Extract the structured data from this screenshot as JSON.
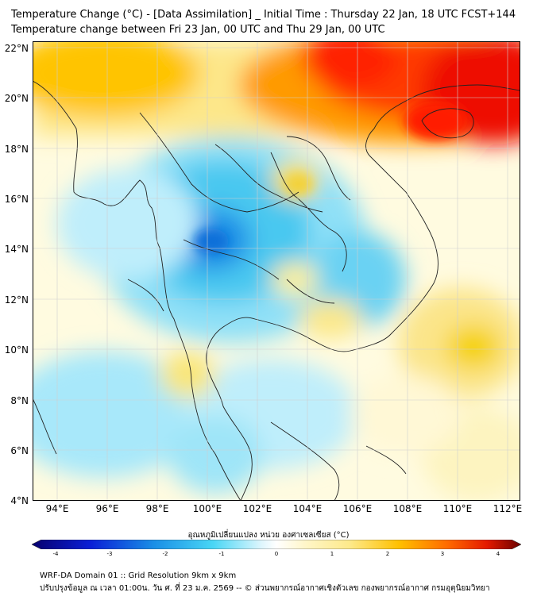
{
  "header": {
    "title_line1": "Temperature Change (°C) - [Data Assimilation] _ Initial Time : Thursday 22 Jan, 18 UTC FCST+144",
    "title_line2": "Temperature change between Fri 23 Jan, 00 UTC and Thu 29 Jan, 00 UTC"
  },
  "map": {
    "lat_labels": [
      "22°N",
      "20°N",
      "18°N",
      "16°N",
      "14°N",
      "12°N",
      "10°N",
      "8°N",
      "6°N",
      "4°N"
    ],
    "lon_labels": [
      "94°E",
      "96°E",
      "98°E",
      "100°E",
      "102°E",
      "104°E",
      "106°E",
      "108°E",
      "110°E",
      "112°E"
    ],
    "lat_range": [
      4,
      22.2
    ],
    "lon_range": [
      93,
      112.5
    ]
  },
  "colorbar": {
    "title": "อุณหภูมิเปลี่ยนแปลง หน่วย องศาเซลเซียส (°C)",
    "ticks": [
      "-4",
      "-3",
      "-2",
      "-1",
      "0",
      "1",
      "2",
      "3",
      "4"
    ],
    "range": [
      -4,
      4
    ]
  },
  "footer": {
    "line1": "WRF-DA Domain 01 :: Grid Resolution 9km x 9km",
    "line2": "ปรับปรุงข้อมูล ณ เวลา 01:00น. วัน ศ. ที่ 23 ม.ค. 2569 -- © ส่วนพยากรณ์อากาศเชิงตัวเลข กองพยากรณ์อากาศ กรมอุตุนิยมวิทยา"
  },
  "colors": {
    "cold_deep": "#1a8fe6",
    "cold": "#48c8f0",
    "cool_light": "#bfeefb",
    "neutral": "#ffffff",
    "warm_light": "#fbf3a0",
    "warm": "#ffd100",
    "hot": "#ff8a00",
    "hottest": "#ee1100",
    "land_outline": "#222222"
  }
}
